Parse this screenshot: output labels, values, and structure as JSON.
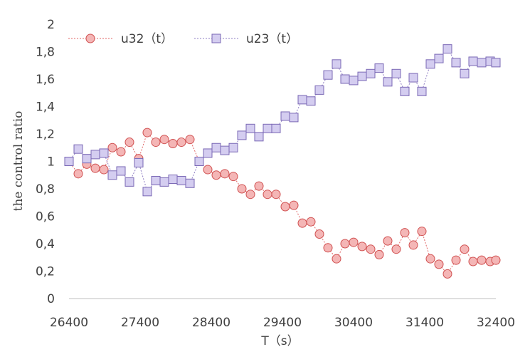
{
  "chart_data": {
    "type": "line",
    "xlabel": "T（s）",
    "ylabel": "the control ratio",
    "xlim": [
      26400,
      32400
    ],
    "ylim": [
      0,
      2
    ],
    "x_ticks": [
      26400,
      27400,
      28400,
      29400,
      30400,
      31400,
      32400
    ],
    "y_ticks": [
      0,
      0.2,
      0.4,
      0.6,
      0.8,
      1,
      1.2,
      1.4,
      1.6,
      1.8,
      2
    ],
    "y_tick_labels": [
      "0",
      "0,2",
      "0,4",
      "0,6",
      "0,8",
      "1",
      "1,2",
      "1,4",
      "1,6",
      "1,8",
      "2"
    ],
    "grid": false,
    "legend_position": "top-left",
    "x": [
      26400,
      26530,
      26650,
      26770,
      26890,
      27010,
      27130,
      27250,
      27380,
      27500,
      27620,
      27740,
      27860,
      27980,
      28100,
      28230,
      28350,
      28470,
      28590,
      28710,
      28830,
      28950,
      29070,
      29190,
      29310,
      29440,
      29560,
      29680,
      29800,
      29920,
      30040,
      30160,
      30280,
      30400,
      30520,
      30640,
      30760,
      30880,
      31000,
      31120,
      31240,
      31360,
      31480,
      31600,
      31720,
      31840,
      31960,
      32080,
      32200,
      32320,
      32400
    ],
    "series": [
      {
        "name": "u32（t）",
        "color": "#e06666",
        "marker": "circle",
        "values": [
          1.0,
          0.91,
          0.98,
          0.95,
          0.94,
          1.1,
          1.07,
          1.14,
          1.02,
          1.21,
          1.14,
          1.16,
          1.13,
          1.14,
          1.16,
          1.0,
          0.94,
          0.9,
          0.91,
          0.89,
          0.8,
          0.76,
          0.82,
          0.76,
          0.76,
          0.67,
          0.68,
          0.55,
          0.56,
          0.47,
          0.37,
          0.29,
          0.4,
          0.41,
          0.38,
          0.36,
          0.32,
          0.42,
          0.36,
          0.48,
          0.39,
          0.49,
          0.29,
          0.25,
          0.18,
          0.28,
          0.36,
          0.27,
          0.28,
          0.27,
          0.28
        ]
      },
      {
        "name": "u23（t）",
        "color": "#8e7cc3",
        "marker": "square",
        "values": [
          1.0,
          1.09,
          1.02,
          1.05,
          1.06,
          0.9,
          0.93,
          0.85,
          0.99,
          0.78,
          0.86,
          0.85,
          0.87,
          0.86,
          0.84,
          1.0,
          1.06,
          1.1,
          1.08,
          1.1,
          1.19,
          1.24,
          1.18,
          1.24,
          1.24,
          1.33,
          1.32,
          1.45,
          1.44,
          1.52,
          1.63,
          1.71,
          1.6,
          1.59,
          1.62,
          1.64,
          1.68,
          1.58,
          1.64,
          1.51,
          1.61,
          1.51,
          1.71,
          1.75,
          1.82,
          1.72,
          1.64,
          1.73,
          1.72,
          1.73,
          1.72
        ]
      }
    ]
  }
}
